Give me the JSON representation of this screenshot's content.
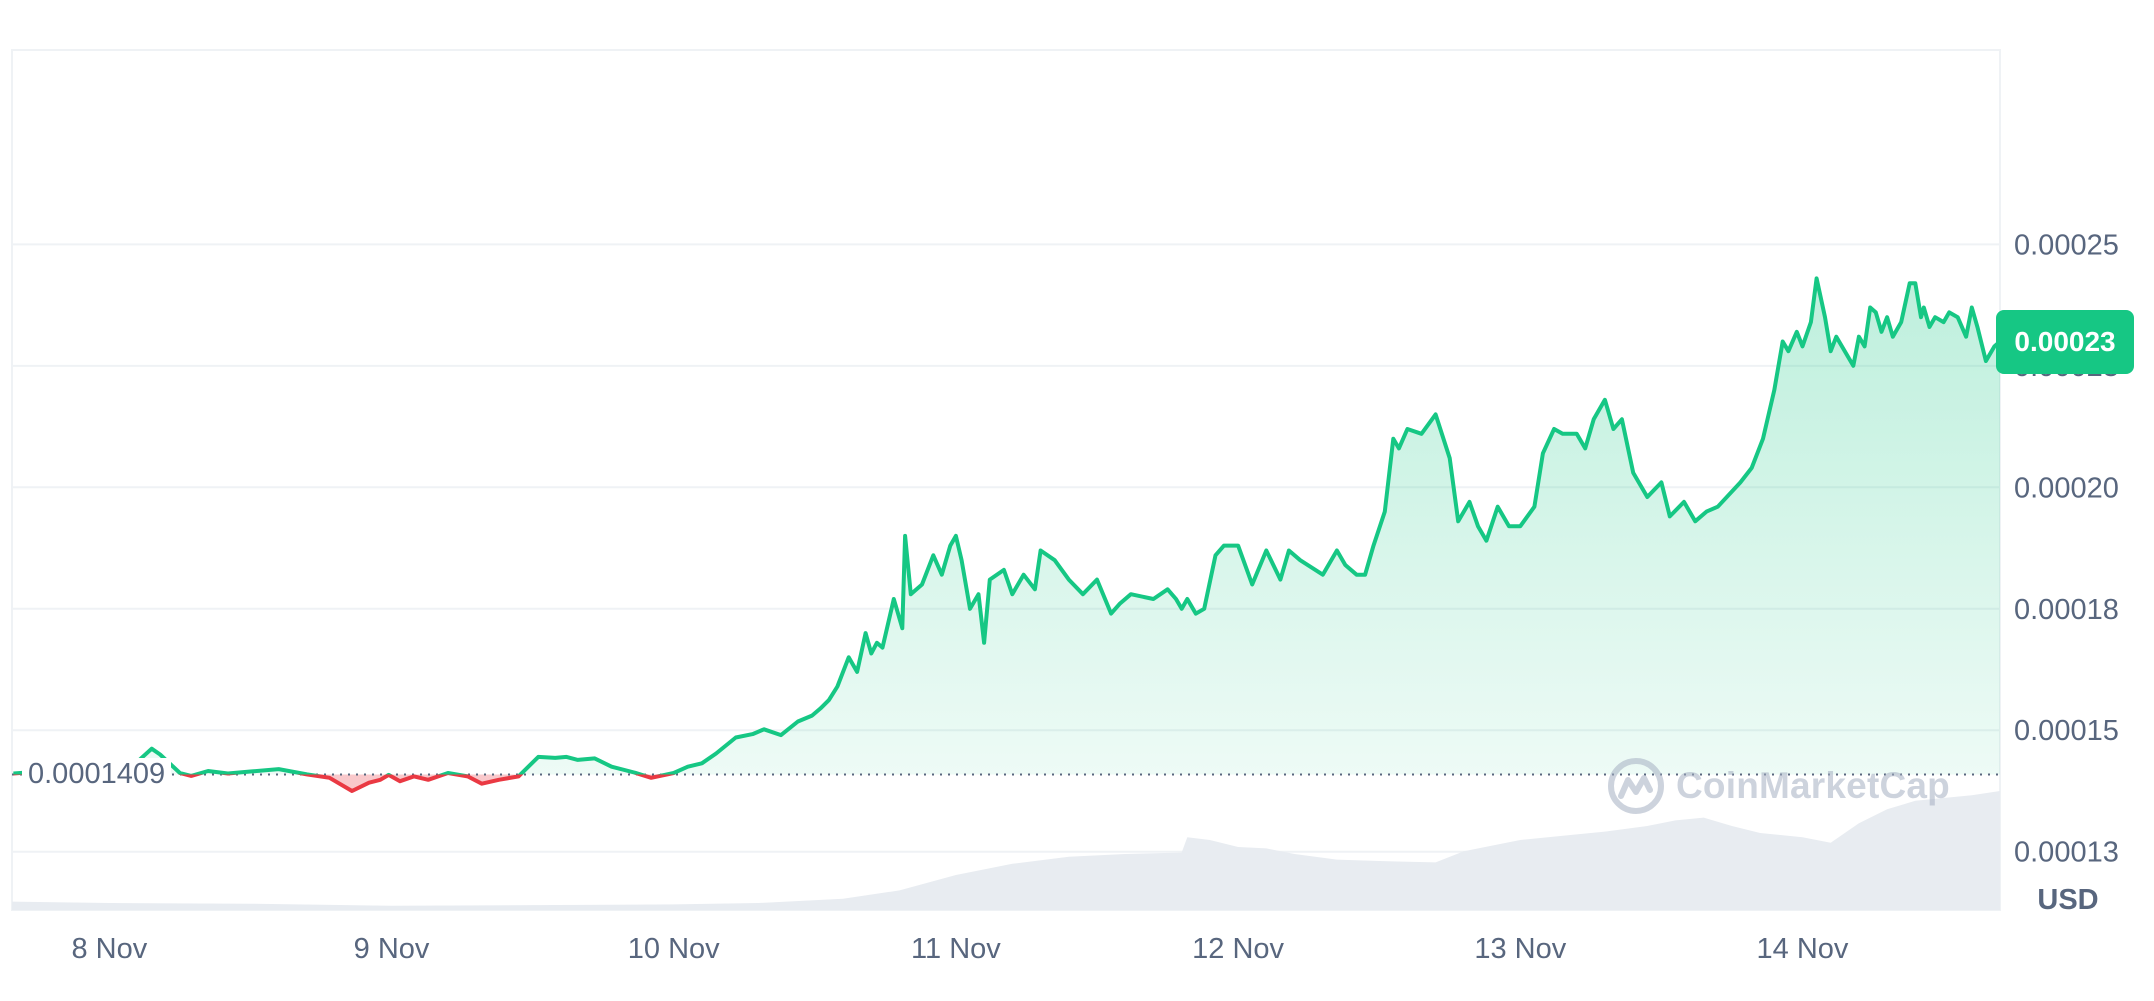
{
  "colors": {
    "up": "#16c784",
    "down": "#ea3943",
    "grid": "#eff2f5",
    "axis_text": "#58667e",
    "volume": "#e8ecf1",
    "watermark": "#a6b0c3"
  },
  "watermark": {
    "text": "CoinMarketCap",
    "icon": "coinmarketcap-logo-icon"
  },
  "currency_label": "USD",
  "current_price_label": "0.00023",
  "baseline_label": "0.0001409",
  "chart_data": {
    "type": "area",
    "x_unit": "days (0 = 8 Nov 00:00)",
    "xlim": [
      -0.345,
      6.7
    ],
    "ylim": [
      0.000113,
      0.00029
    ],
    "baseline": 0.0001409,
    "y_ticks": [
      {
        "value": 0.00025,
        "label": "0.00025"
      },
      {
        "value": 0.000225,
        "label": "0.00023"
      },
      {
        "value": 0.0002,
        "label": "0.00020"
      },
      {
        "value": 0.000175,
        "label": "0.00018"
      },
      {
        "value": 0.00015,
        "label": "0.00015"
      },
      {
        "value": 0.000125,
        "label": "0.00013"
      }
    ],
    "x_ticks": [
      {
        "value": 0,
        "label": "8 Nov"
      },
      {
        "value": 1,
        "label": "9 Nov"
      },
      {
        "value": 2,
        "label": "10 Nov"
      },
      {
        "value": 3,
        "label": "11 Nov"
      },
      {
        "value": 4,
        "label": "12 Nov"
      },
      {
        "value": 5,
        "label": "13 Nov"
      },
      {
        "value": 6,
        "label": "14 Nov"
      }
    ],
    "x": [
      -0.34,
      -0.2,
      -0.1,
      -0.02,
      0.08,
      0.15,
      0.18,
      0.25,
      0.29,
      0.35,
      0.42,
      0.5,
      0.6,
      0.7,
      0.78,
      0.86,
      0.92,
      0.96,
      0.99,
      1.03,
      1.08,
      1.13,
      1.2,
      1.27,
      1.32,
      1.38,
      1.45,
      1.52,
      1.58,
      1.62,
      1.66,
      1.72,
      1.78,
      1.86,
      1.92,
      2.0,
      2.05,
      2.1,
      2.15,
      2.22,
      2.28,
      2.32,
      2.38,
      2.44,
      2.49,
      2.52,
      2.55,
      2.58,
      2.62,
      2.65,
      2.68,
      2.7,
      2.72,
      2.74,
      2.78,
      2.81,
      2.82,
      2.84,
      2.88,
      2.92,
      2.95,
      2.98,
      3.0,
      3.02,
      3.05,
      3.08,
      3.1,
      3.12,
      3.17,
      3.2,
      3.24,
      3.28,
      3.3,
      3.35,
      3.4,
      3.45,
      3.5,
      3.55,
      3.58,
      3.62,
      3.7,
      3.75,
      3.78,
      3.8,
      3.82,
      3.85,
      3.88,
      3.92,
      3.95,
      4.0,
      4.05,
      4.1,
      4.15,
      4.18,
      4.22,
      4.3,
      4.35,
      4.38,
      4.42,
      4.45,
      4.48,
      4.52,
      4.55,
      4.57,
      4.6,
      4.65,
      4.7,
      4.75,
      4.78,
      4.82,
      4.85,
      4.88,
      4.92,
      4.96,
      5.0,
      5.05,
      5.08,
      5.12,
      5.15,
      5.2,
      5.23,
      5.26,
      5.3,
      5.33,
      5.36,
      5.4,
      5.45,
      5.5,
      5.53,
      5.58,
      5.62,
      5.66,
      5.7,
      5.78,
      5.82,
      5.86,
      5.9,
      5.93,
      5.95,
      5.98,
      6.0,
      6.03,
      6.05,
      6.08,
      6.1,
      6.12,
      6.15,
      6.18,
      6.2,
      6.22,
      6.24,
      6.26,
      6.28,
      6.3,
      6.32,
      6.35,
      6.38,
      6.4,
      6.42,
      6.43,
      6.45,
      6.47,
      6.5,
      6.52,
      6.55,
      6.58,
      6.6,
      6.62,
      6.65,
      6.68,
      6.7
    ],
    "values": [
      0.0001411,
      0.0001417,
      0.0001426,
      0.0001432,
      0.0001425,
      0.0001462,
      0.000145,
      0.0001412,
      0.0001406,
      0.0001416,
      0.0001411,
      0.0001415,
      0.000142,
      0.0001409,
      0.0001402,
      0.0001375,
      0.0001392,
      0.0001398,
      0.0001408,
      0.0001395,
      0.0001405,
      0.0001398,
      0.0001412,
      0.0001405,
      0.000139,
      0.0001398,
      0.0001405,
      0.0001445,
      0.0001443,
      0.0001445,
      0.0001439,
      0.0001442,
      0.0001425,
      0.0001413,
      0.0001402,
      0.0001412,
      0.0001425,
      0.0001432,
      0.0001452,
      0.0001485,
      0.0001492,
      0.0001502,
      0.000149,
      0.0001518,
      0.000153,
      0.0001545,
      0.0001562,
      0.000159,
      0.000165,
      0.000162,
      0.00017,
      0.0001658,
      0.000168,
      0.000167,
      0.000177,
      0.000171,
      0.00019,
      0.000178,
      0.00018,
      0.000186,
      0.000182,
      0.000188,
      0.00019,
      0.000185,
      0.000175,
      0.000178,
      0.000168,
      0.000181,
      0.000183,
      0.000178,
      0.000182,
      0.000179,
      0.000187,
      0.000185,
      0.000181,
      0.000178,
      0.000181,
      0.000174,
      0.000176,
      0.000178,
      0.000177,
      0.000179,
      0.000177,
      0.000175,
      0.000177,
      0.000174,
      0.000175,
      0.000186,
      0.000188,
      0.000188,
      0.00018,
      0.000187,
      0.000181,
      0.000187,
      0.000185,
      0.000182,
      0.000187,
      0.000184,
      0.000182,
      0.000182,
      0.000188,
      0.000195,
      0.00021,
      0.000208,
      0.000212,
      0.000211,
      0.000215,
      0.000206,
      0.000193,
      0.000197,
      0.000192,
      0.000189,
      0.000196,
      0.000192,
      0.000192,
      0.000196,
      0.000207,
      0.000212,
      0.000211,
      0.000211,
      0.000208,
      0.000214,
      0.000218,
      0.000212,
      0.000214,
      0.000203,
      0.000198,
      0.000201,
      0.000194,
      0.000197,
      0.000193,
      0.000195,
      0.000196,
      0.000201,
      0.000204,
      0.00021,
      0.00022,
      0.00023,
      0.000228,
      0.000232,
      0.000229,
      0.000234,
      0.000243,
      0.000235,
      0.000228,
      0.000231,
      0.000228,
      0.000225,
      0.000231,
      0.000229,
      0.000237,
      0.000236,
      0.000232,
      0.000235,
      0.000231,
      0.000234,
      0.000242,
      0.000242,
      0.000235,
      0.000237,
      0.000233,
      0.000235,
      0.000234,
      0.000236,
      0.000235,
      0.000231,
      0.000237,
      0.000233,
      0.000226,
      0.000229,
      0.00023
    ],
    "volume": {
      "x": [
        -0.345,
        0.0,
        0.5,
        1.0,
        1.5,
        2.0,
        2.3,
        2.6,
        2.8,
        3.0,
        3.2,
        3.4,
        3.6,
        3.8,
        3.82,
        3.9,
        4.0,
        4.1,
        4.2,
        4.35,
        4.5,
        4.7,
        4.8,
        5.0,
        5.2,
        5.3,
        5.45,
        5.55,
        5.65,
        5.75,
        5.85,
        6.0,
        6.1,
        6.2,
        6.3,
        6.4,
        6.6,
        6.7
      ],
      "values": [
        0.06,
        0.05,
        0.045,
        0.03,
        0.035,
        0.04,
        0.05,
        0.08,
        0.14,
        0.25,
        0.33,
        0.38,
        0.4,
        0.41,
        0.52,
        0.5,
        0.45,
        0.44,
        0.4,
        0.36,
        0.35,
        0.34,
        0.42,
        0.5,
        0.54,
        0.56,
        0.6,
        0.64,
        0.66,
        0.6,
        0.55,
        0.52,
        0.48,
        0.62,
        0.72,
        0.78,
        0.82,
        0.85
      ]
    }
  }
}
